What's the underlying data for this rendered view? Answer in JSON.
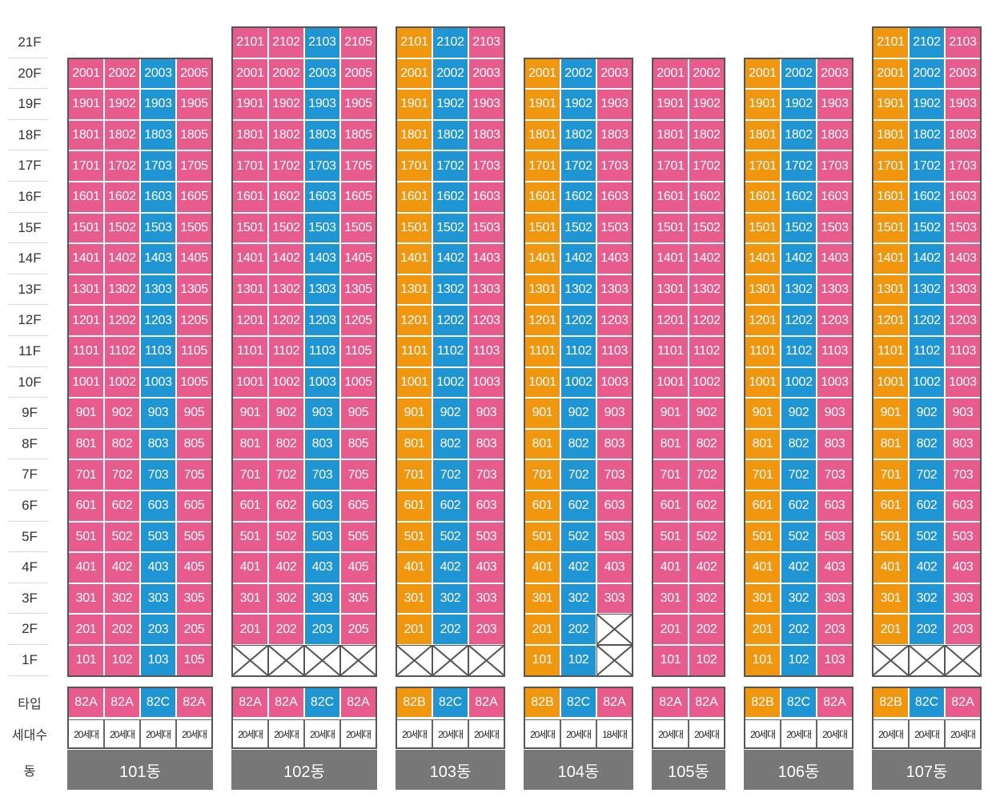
{
  "floors": [
    "21F",
    "20F",
    "19F",
    "18F",
    "17F",
    "16F",
    "15F",
    "14F",
    "13F",
    "12F",
    "11F",
    "10F",
    "9F",
    "8F",
    "7F",
    "6F",
    "5F",
    "4F",
    "3F",
    "2F",
    "1F"
  ],
  "row_labels": {
    "type": "타입",
    "households": "세대수",
    "building": "동"
  },
  "colors": {
    "82A": "#e75b8d",
    "82B": "#f0960f",
    "82C": "#1f96d3",
    "name_bg": "#777777"
  },
  "buildings": [
    {
      "name": "101동",
      "top_floor": 20,
      "columns": [
        {
          "unit": "01",
          "type": "82A",
          "households": "20세대",
          "empty_floors": []
        },
        {
          "unit": "02",
          "type": "82A",
          "households": "20세대",
          "empty_floors": []
        },
        {
          "unit": "03",
          "type": "82C",
          "households": "20세대",
          "empty_floors": []
        },
        {
          "unit": "05",
          "type": "82A",
          "households": "20세대",
          "empty_floors": []
        }
      ]
    },
    {
      "name": "102동",
      "top_floor": 21,
      "columns": [
        {
          "unit": "01",
          "type": "82A",
          "households": "20세대",
          "empty_floors": [
            1
          ]
        },
        {
          "unit": "02",
          "type": "82A",
          "households": "20세대",
          "empty_floors": [
            1
          ]
        },
        {
          "unit": "03",
          "type": "82C",
          "households": "20세대",
          "empty_floors": [
            1
          ]
        },
        {
          "unit": "05",
          "type": "82A",
          "households": "20세대",
          "empty_floors": [
            1
          ]
        }
      ]
    },
    {
      "name": "103동",
      "top_floor": 21,
      "columns": [
        {
          "unit": "01",
          "type": "82B",
          "households": "20세대",
          "empty_floors": [
            1
          ]
        },
        {
          "unit": "02",
          "type": "82C",
          "households": "20세대",
          "empty_floors": [
            1
          ]
        },
        {
          "unit": "03",
          "type": "82A",
          "households": "20세대",
          "empty_floors": [
            1
          ]
        }
      ]
    },
    {
      "name": "104동",
      "top_floor": 20,
      "columns": [
        {
          "unit": "01",
          "type": "82B",
          "households": "20세대",
          "empty_floors": []
        },
        {
          "unit": "02",
          "type": "82C",
          "households": "20세대",
          "empty_floors": []
        },
        {
          "unit": "03",
          "type": "82A",
          "households": "18세대",
          "empty_floors": [
            1,
            2
          ]
        }
      ]
    },
    {
      "name": "105동",
      "top_floor": 20,
      "columns": [
        {
          "unit": "01",
          "type": "82A",
          "households": "20세대",
          "empty_floors": []
        },
        {
          "unit": "02",
          "type": "82A",
          "households": "20세대",
          "empty_floors": []
        }
      ]
    },
    {
      "name": "106동",
      "top_floor": 20,
      "columns": [
        {
          "unit": "01",
          "type": "82B",
          "households": "20세대",
          "empty_floors": []
        },
        {
          "unit": "02",
          "type": "82C",
          "households": "20세대",
          "empty_floors": []
        },
        {
          "unit": "03",
          "type": "82A",
          "households": "20세대",
          "empty_floors": []
        }
      ]
    },
    {
      "name": "107동",
      "top_floor": 21,
      "columns": [
        {
          "unit": "01",
          "type": "82B",
          "households": "20세대",
          "empty_floors": [
            1
          ]
        },
        {
          "unit": "02",
          "type": "82C",
          "households": "20세대",
          "empty_floors": [
            1
          ]
        },
        {
          "unit": "03",
          "type": "82A",
          "households": "20세대",
          "empty_floors": [
            1
          ]
        }
      ]
    }
  ]
}
